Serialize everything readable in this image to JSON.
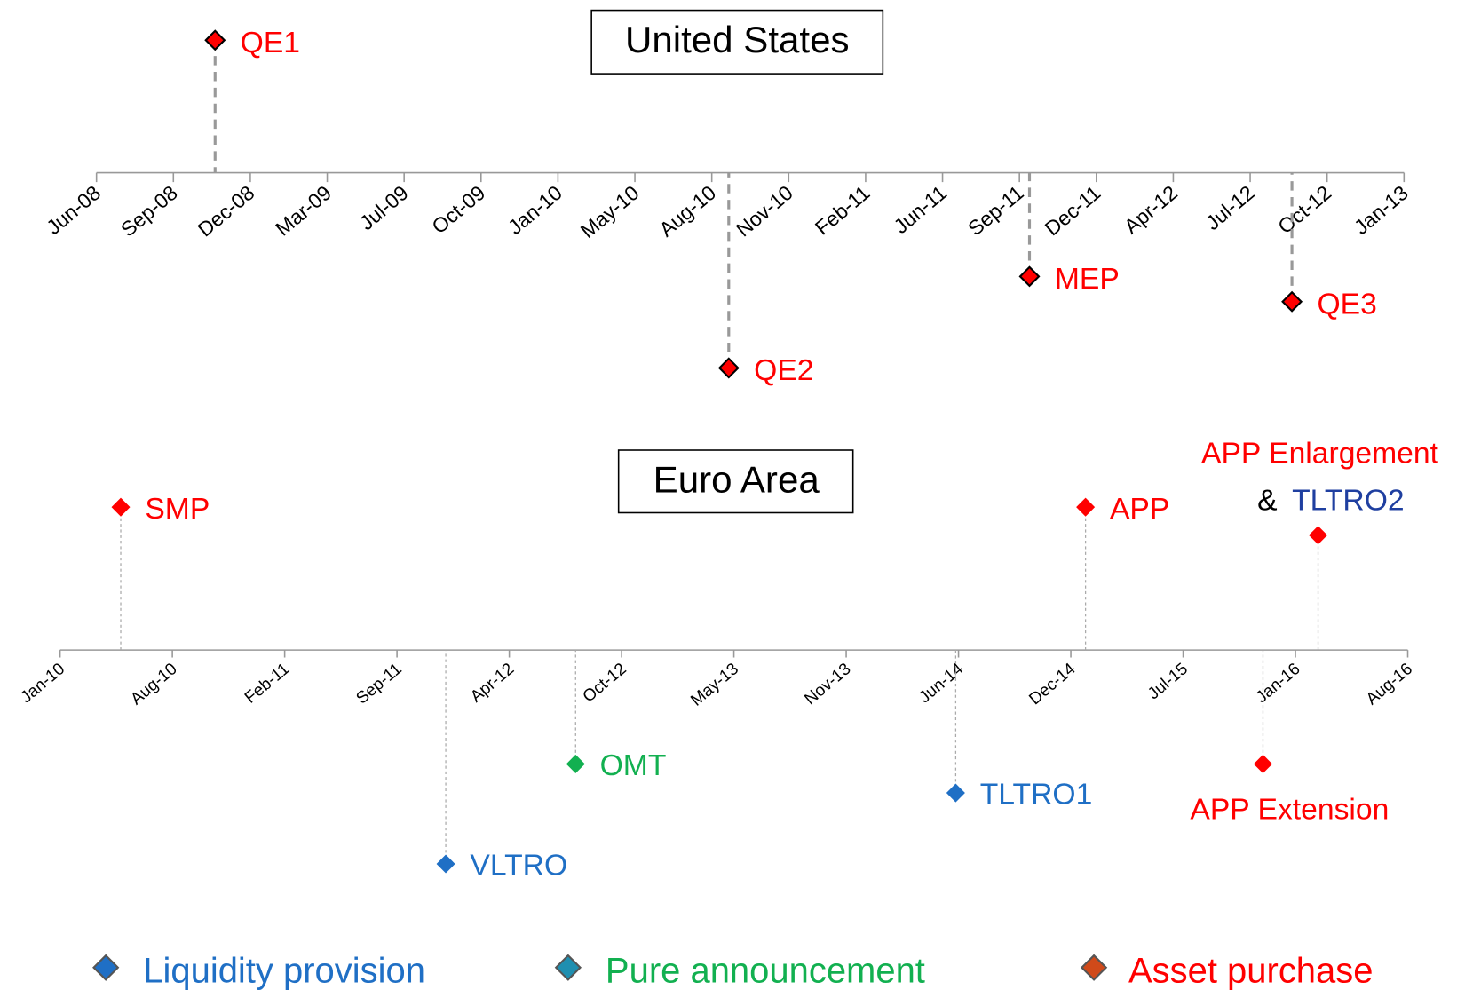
{
  "us": {
    "title": "United States",
    "axis_labels": [
      "Jun-08",
      "Sep-08",
      "Dec-08",
      "Mar-09",
      "Jul-09",
      "Oct-09",
      "Jan-10",
      "May-10",
      "Aug-10",
      "Nov-10",
      "Feb-11",
      "Jun-11",
      "Sep-11",
      "Dec-11",
      "Apr-12",
      "Jul-12",
      "Oct-12",
      "Jan-13"
    ],
    "events": [
      {
        "label": "QE1"
      },
      {
        "label": "QE2"
      },
      {
        "label": "MEP"
      },
      {
        "label": "QE3"
      }
    ]
  },
  "euro": {
    "title": "Euro Area",
    "axis_labels": [
      "Jan-10",
      "Aug-10",
      "Feb-11",
      "Sep-11",
      "Apr-12",
      "Oct-12",
      "May-13",
      "Nov-13",
      "Jun-14",
      "Dec-14",
      "Jul-15",
      "Jan-16",
      "Aug-16"
    ],
    "events": [
      {
        "label": "SMP"
      },
      {
        "label": "APP"
      },
      {
        "label_parts": [
          "APP Enlargement",
          "&",
          "TLTRO2"
        ]
      },
      {
        "label": "VLTRO"
      },
      {
        "label": "OMT"
      },
      {
        "label": "TLTRO1"
      },
      {
        "label": "APP Extension"
      }
    ]
  },
  "legend": [
    "Liquidity provision",
    "Pure announcement",
    "Asset purchase"
  ]
}
